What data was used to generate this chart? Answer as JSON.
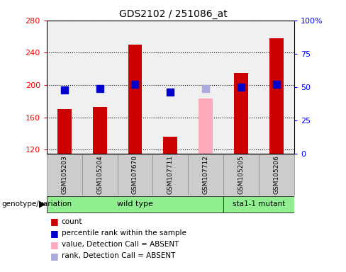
{
  "title": "GDS2102 / 251086_at",
  "samples": [
    "GSM105203",
    "GSM105204",
    "GSM107670",
    "GSM107711",
    "GSM107712",
    "GSM105205",
    "GSM105206"
  ],
  "bar_values": [
    170,
    173,
    250,
    136,
    null,
    215,
    258
  ],
  "bar_absent_values": [
    null,
    null,
    null,
    null,
    183,
    null,
    null
  ],
  "bar_color": "#cc0000",
  "bar_absent_color": "#ffaabb",
  "rank_values": [
    48,
    49,
    52,
    46,
    null,
    50,
    52
  ],
  "rank_absent_values": [
    null,
    null,
    null,
    null,
    49,
    null,
    null
  ],
  "rank_color": "#0000cc",
  "rank_absent_color": "#aaaadd",
  "ylim_left": [
    115,
    280
  ],
  "ylim_right": [
    0,
    100
  ],
  "yticks_left": [
    120,
    160,
    200,
    240,
    280
  ],
  "yticks_right": [
    0,
    25,
    50,
    75,
    100
  ],
  "yticklabels_right": [
    "0",
    "25",
    "50",
    "75",
    "100%"
  ],
  "wild_type_label": "wild type",
  "mutant_label": "sta1-1 mutant",
  "genotype_label": "genotype/variation",
  "legend_items": [
    {
      "label": "count",
      "color": "#cc0000"
    },
    {
      "label": "percentile rank within the sample",
      "color": "#0000cc"
    },
    {
      "label": "value, Detection Call = ABSENT",
      "color": "#ffaabb"
    },
    {
      "label": "rank, Detection Call = ABSENT",
      "color": "#aaaadd"
    }
  ],
  "bar_width": 0.4,
  "rank_dot_size": 45,
  "plot_bg": "#f0f0f0",
  "label_bg": "#cccccc",
  "green_light": "#99ee99",
  "green_dark": "#44cc44"
}
